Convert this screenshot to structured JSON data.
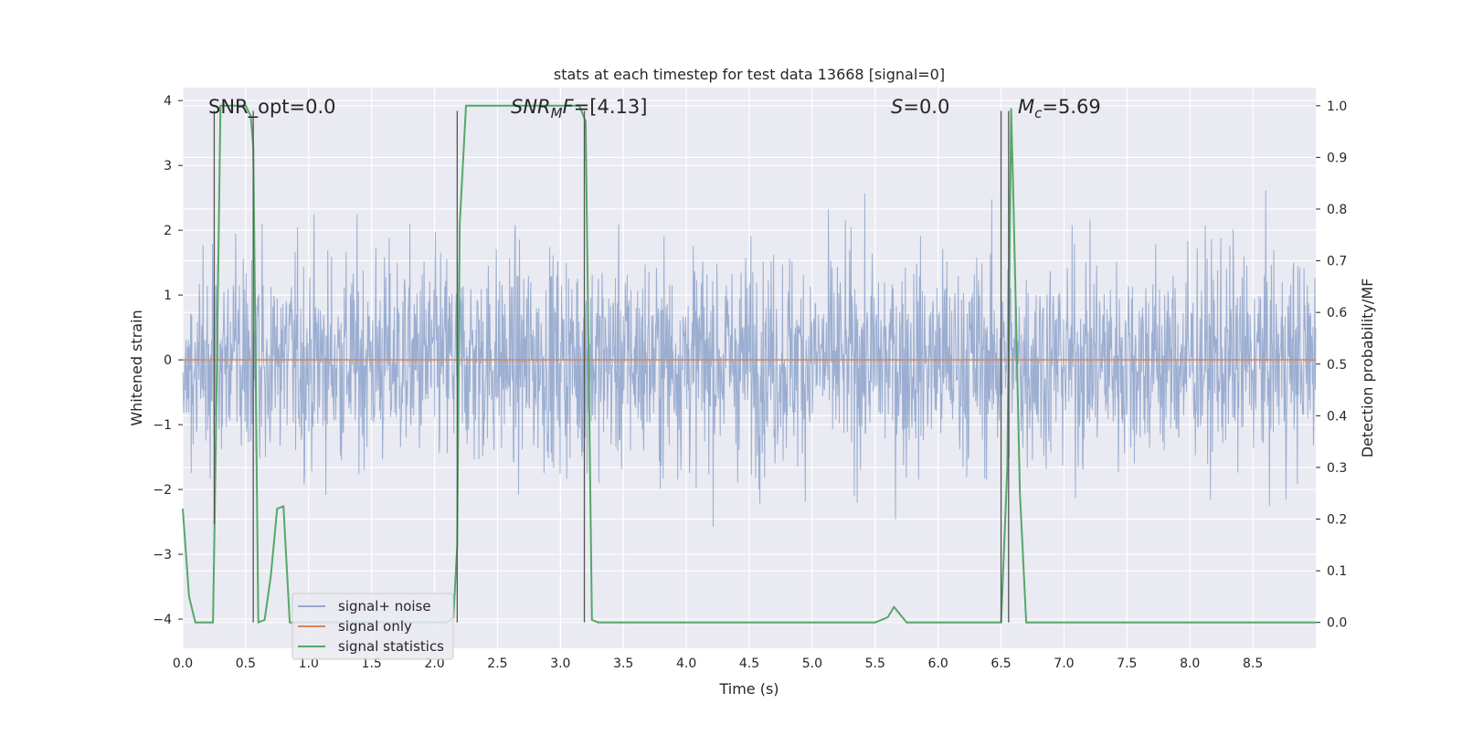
{
  "chart_data": {
    "type": "line",
    "title": "stats at each timestep for test data 13668 [signal=0]",
    "xlabel": "Time (s)",
    "ylabel": "Whitened strain",
    "ylabel_right": "Detection probability/MF",
    "xlim": [
      0.0,
      9.0
    ],
    "ylim": [
      -4.45,
      4.2
    ],
    "ylim_right": [
      -0.05,
      1.035
    ],
    "x_ticks": [
      "0.0",
      "0.5",
      "1.0",
      "1.5",
      "2.0",
      "2.5",
      "3.0",
      "3.5",
      "4.0",
      "4.5",
      "5.0",
      "5.5",
      "6.0",
      "6.5",
      "7.0",
      "7.5",
      "8.0",
      "8.5"
    ],
    "x_tick_values": [
      0.0,
      0.5,
      1.0,
      1.5,
      2.0,
      2.5,
      3.0,
      3.5,
      4.0,
      4.5,
      5.0,
      5.5,
      6.0,
      6.5,
      7.0,
      7.5,
      8.0,
      8.5
    ],
    "y_ticks": [
      "4",
      "3",
      "2",
      "1",
      "0",
      "−1",
      "−2",
      "−3",
      "−4"
    ],
    "y_tick_values": [
      4,
      3,
      2,
      1,
      0,
      -1,
      -2,
      -3,
      -4
    ],
    "y_ticks_right": [
      "1.0",
      "0.9",
      "0.8",
      "0.7",
      "0.6",
      "0.5",
      "0.4",
      "0.3",
      "0.2",
      "0.1",
      "0.0"
    ],
    "y_tick_values_right": [
      1.0,
      0.9,
      0.8,
      0.7,
      0.6,
      0.5,
      0.4,
      0.3,
      0.2,
      0.1,
      0.0
    ],
    "grid": true,
    "legend_position": "lower-left",
    "series": [
      {
        "name": "signal+ noise",
        "color": "#4c72b0",
        "axis": "left",
        "style": "noise",
        "x_range": [
          0.0,
          9.0
        ],
        "approx_amplitude": 3.5
      },
      {
        "name": "signal only",
        "color": "#dd8452",
        "axis": "left",
        "x": [
          0.0,
          9.0
        ],
        "values": [
          0.0,
          0.0
        ]
      },
      {
        "name": "signal statistics",
        "color": "#55a868",
        "axis": "right",
        "x": [
          0.0,
          0.05,
          0.1,
          0.2,
          0.24,
          0.26,
          0.3,
          0.4,
          0.5,
          0.54,
          0.56,
          0.6,
          0.65,
          0.7,
          0.75,
          0.8,
          0.85,
          0.9,
          1.0,
          1.5,
          2.0,
          2.1,
          2.15,
          2.18,
          2.2,
          2.25,
          2.5,
          3.0,
          3.15,
          3.2,
          3.25,
          3.3,
          3.5,
          4.0,
          4.5,
          5.0,
          5.5,
          5.6,
          5.65,
          5.7,
          5.75,
          6.0,
          6.5,
          6.55,
          6.58,
          6.6,
          6.65,
          6.7,
          7.0,
          7.5,
          8.0,
          8.5,
          9.0
        ],
        "values": [
          0.22,
          0.05,
          0.0,
          0.0,
          0.0,
          0.3,
          1.0,
          1.0,
          1.0,
          0.98,
          0.92,
          0.0,
          0.005,
          0.09,
          0.22,
          0.225,
          0.0,
          0.0,
          0.0,
          0.0,
          0.0,
          0.0,
          0.01,
          0.15,
          0.77,
          1.0,
          1.0,
          1.0,
          1.0,
          0.97,
          0.005,
          0.0,
          0.0,
          0.0,
          0.0,
          0.0,
          0.0,
          0.01,
          0.03,
          0.015,
          0.0,
          0.0,
          0.0,
          0.3,
          0.995,
          0.8,
          0.25,
          0.0,
          0.0,
          0.0,
          0.0,
          0.0,
          0.0
        ]
      }
    ],
    "vertical_markers": [
      {
        "x": 0.25,
        "y_top": 0.99,
        "y_bottom": 0.19
      },
      {
        "x": 0.56,
        "y_top": 0.99,
        "y_bottom": 0.0
      },
      {
        "x": 2.18,
        "y_top": 0.99,
        "y_bottom": 0.0
      },
      {
        "x": 3.19,
        "y_top": 0.99,
        "y_bottom": 0.0
      },
      {
        "x": 6.5,
        "y_top": 0.99,
        "y_bottom": 0.0
      },
      {
        "x": 6.56,
        "y_top": 0.99,
        "y_bottom": 0.0
      }
    ],
    "annotations": [
      {
        "id": "snr_opt",
        "plain": "SNR_opt=0.0",
        "x": 0.2,
        "y": 3.85
      },
      {
        "id": "snr_mf",
        "base": "SNR",
        "sub": "M",
        "after_italic": "F",
        "rest": "=[4.13]",
        "x": 2.6,
        "y": 3.85
      },
      {
        "id": "s",
        "base": "S",
        "rest": "=0.0",
        "x": 5.6,
        "y": 3.85
      },
      {
        "id": "mc",
        "base": "M",
        "sub": "c",
        "rest": "=5.69",
        "x": 6.6,
        "y": 3.85
      }
    ]
  }
}
